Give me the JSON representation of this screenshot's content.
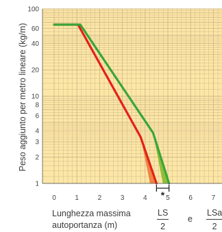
{
  "chart_data": {
    "type": "line",
    "ylabel": "Peso aggiunto per metro lineare (kg/m)",
    "xlabel_line1": "Lunghezza massima",
    "xlabel_line2": "autoportanza (m)",
    "x_ticks": [
      "0",
      "1",
      "2",
      "3",
      "4",
      "5",
      "6",
      "7"
    ],
    "y_ticks": [
      "1",
      "2",
      "3",
      "4",
      "6",
      "8",
      "10",
      "20",
      "40",
      "60",
      "100"
    ],
    "xlim": [
      0,
      7.3
    ],
    "ylim": [
      1,
      100
    ],
    "y_scale": "log",
    "grid": true,
    "background_color": "#fde7a6",
    "grid_color": "#cfb88a",
    "series": [
      {
        "color": "#e32119",
        "x": [
          0,
          1.05,
          3.8,
          4.5
        ],
        "y": [
          66,
          66,
          3.4,
          1
        ]
      },
      {
        "color": "#3aa53a",
        "x": [
          0,
          1.15,
          4.35,
          5.05
        ],
        "y": [
          66,
          66,
          3.8,
          1
        ]
      }
    ],
    "bands": [
      {
        "color": "#ee7a3a",
        "x": [
          3.8,
          4.5,
          4.22
        ],
        "y": [
          3.4,
          1,
          1
        ]
      },
      {
        "color": "#86b92f",
        "x": [
          4.35,
          5.05,
          4.78
        ],
        "y": [
          3.8,
          1,
          1
        ]
      }
    ],
    "marker": {
      "x_from": 4.5,
      "x_to": 5.05,
      "symbol": "*"
    },
    "formula": {
      "a_num": "LS",
      "a_den": "2",
      "conj": "e",
      "b_num": "LSa",
      "b_den": "2"
    }
  }
}
